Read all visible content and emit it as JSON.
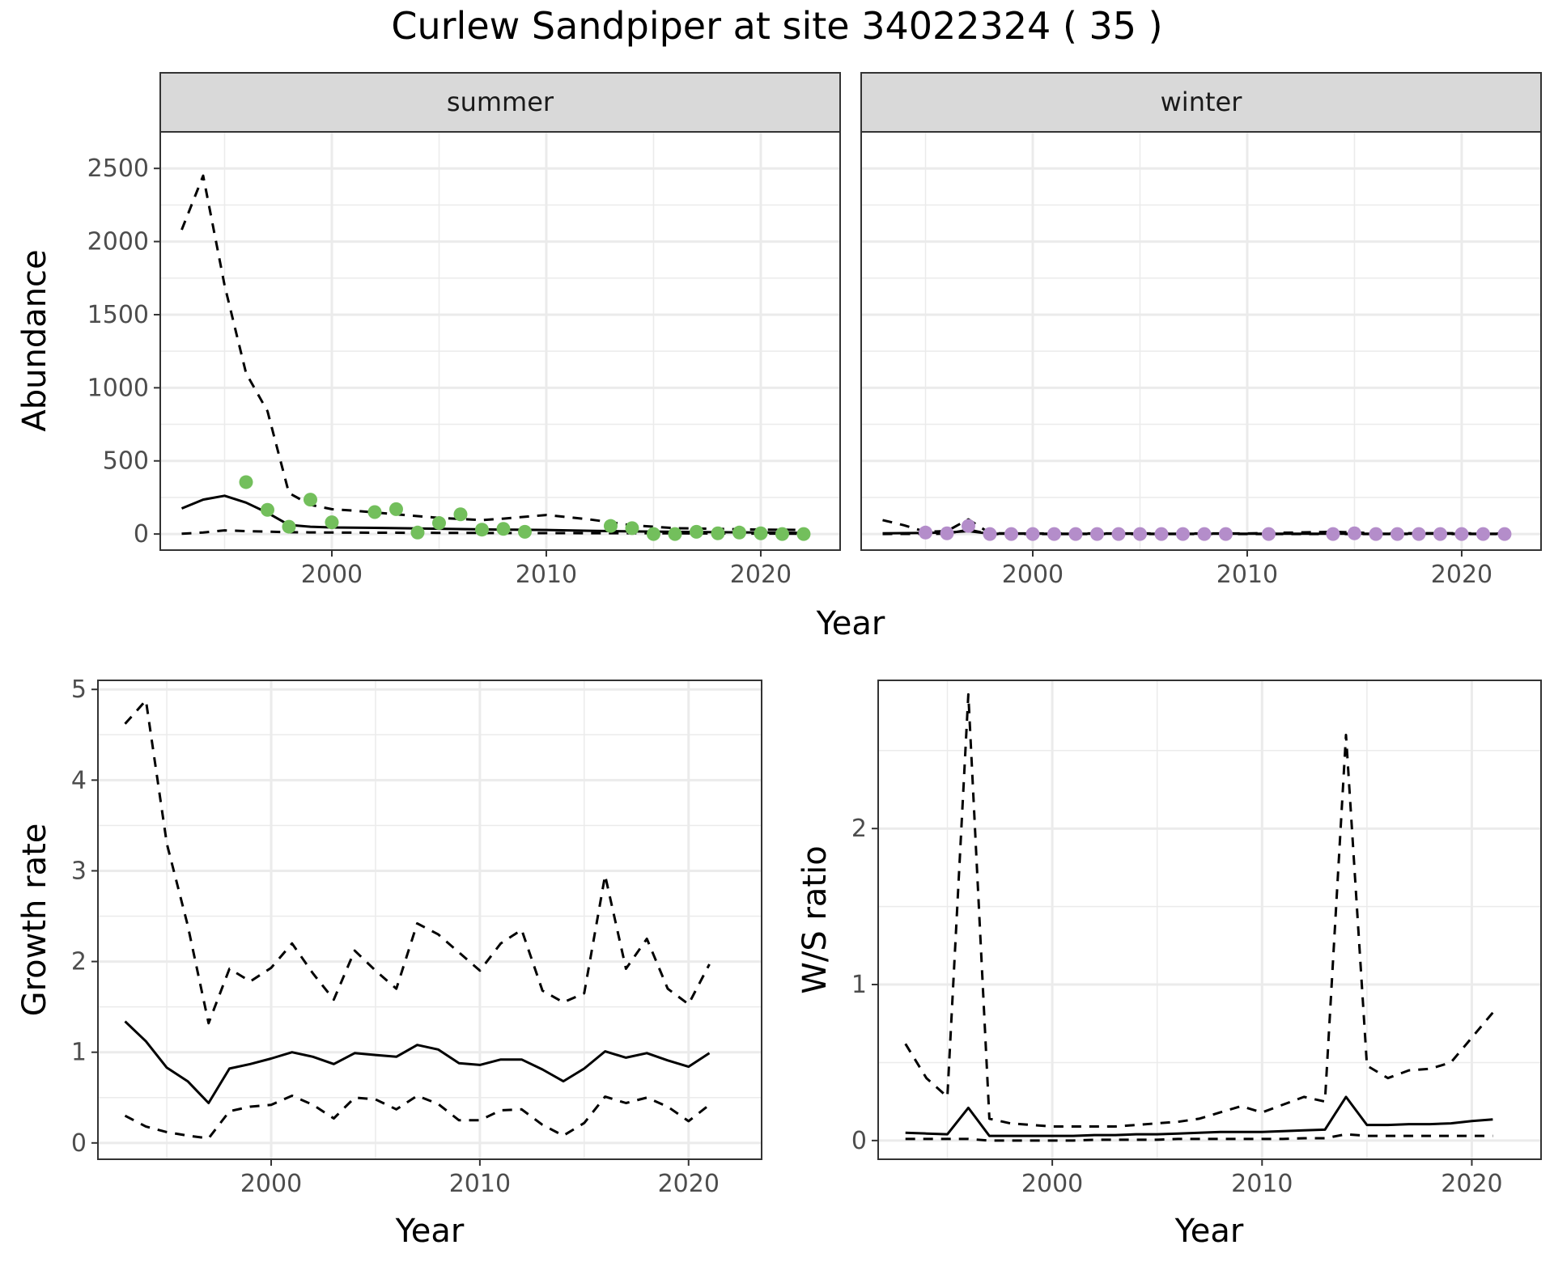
{
  "title": "Curlew Sandpiper at site 34022324 ( 35 )",
  "colors": {
    "summer_points": "#73bf5c",
    "winter_points": "#b48dca",
    "line": "#000000",
    "strip_bg": "#d9d9d9",
    "grid": "#ebebeb"
  },
  "chart_data": [
    {
      "type": "line",
      "panel": "abundance",
      "facets": [
        "summer",
        "winter"
      ],
      "xlabel": "Year",
      "ylabel": "Abundance",
      "xlim": [
        1992,
        2023.7
      ],
      "ylim": [
        -110,
        2750
      ],
      "xticks": [
        2000,
        2010,
        2020
      ],
      "yticks": [
        0,
        500,
        1000,
        1500,
        2000,
        2500
      ],
      "grid": true,
      "summer": {
        "mean": {
          "x": [
            1993,
            1994,
            1995,
            1996,
            1997,
            1998,
            1999,
            2000,
            2002,
            2004,
            2006,
            2008,
            2010,
            2012,
            2014,
            2016,
            2018,
            2020,
            2022
          ],
          "y": [
            175,
            235,
            262,
            215,
            145,
            62,
            50,
            45,
            42,
            38,
            34,
            30,
            28,
            22,
            18,
            15,
            12,
            10,
            8
          ]
        },
        "upper": {
          "x": [
            1993,
            1994,
            1995,
            1996,
            1997,
            1998,
            1999,
            2000,
            2001,
            2003,
            2005,
            2007,
            2008,
            2010,
            2012,
            2014,
            2016,
            2018,
            2020,
            2022
          ],
          "y": [
            2080,
            2450,
            1700,
            1100,
            840,
            280,
            200,
            170,
            160,
            135,
            110,
            95,
            105,
            130,
            100,
            60,
            40,
            35,
            30,
            28
          ]
        },
        "lower": {
          "x": [
            1993,
            1994,
            1995,
            1996,
            1998,
            2000,
            2005,
            2010,
            2015,
            2020,
            2022
          ],
          "y": [
            2,
            10,
            25,
            20,
            12,
            10,
            8,
            6,
            5,
            3,
            2
          ]
        },
        "points": {
          "x": [
            1996,
            1997,
            1998,
            1999,
            2000,
            2002,
            2003,
            2004,
            2005,
            2006,
            2007,
            2008,
            2009,
            2013,
            2014,
            2015,
            2016,
            2017,
            2018,
            2019,
            2020,
            2021,
            2022
          ],
          "y": [
            355,
            165,
            50,
            235,
            80,
            150,
            170,
            10,
            75,
            135,
            30,
            35,
            15,
            55,
            40,
            0,
            0,
            15,
            5,
            10,
            5,
            0,
            0
          ]
        }
      },
      "winter": {
        "mean": {
          "x": [
            1993,
            1995,
            1996,
            1997,
            1998,
            2000,
            2005,
            2010,
            2015,
            2020,
            2022
          ],
          "y": [
            5,
            8,
            10,
            20,
            2,
            2,
            2,
            2,
            2,
            2,
            2
          ]
        },
        "upper": {
          "x": [
            1993,
            1994,
            1995,
            1996,
            1997,
            1998,
            2000,
            2005,
            2010,
            2014,
            2016,
            2020,
            2022
          ],
          "y": [
            95,
            60,
            15,
            20,
            100,
            5,
            4,
            4,
            4,
            15,
            6,
            5,
            4
          ]
        },
        "lower": {
          "x": [
            1993,
            1996,
            1997,
            1998,
            2010,
            2022
          ],
          "y": [
            0,
            2,
            30,
            0,
            0,
            0
          ]
        },
        "points": {
          "x": [
            1995,
            1996,
            1997,
            1998,
            1999,
            2000,
            2001,
            2002,
            2003,
            2004,
            2005,
            2006,
            2007,
            2008,
            2009,
            2011,
            2014,
            2015,
            2016,
            2017,
            2018,
            2019,
            2020,
            2021,
            2022
          ],
          "y": [
            10,
            5,
            55,
            0,
            0,
            0,
            0,
            0,
            0,
            0,
            0,
            0,
            0,
            0,
            0,
            0,
            0,
            5,
            0,
            0,
            0,
            0,
            0,
            0,
            0
          ]
        }
      }
    },
    {
      "type": "line",
      "panel": "growth",
      "xlabel": "Year",
      "ylabel": "Growth rate",
      "xlim": [
        1991.7,
        2023.5
      ],
      "ylim": [
        -0.18,
        5.1
      ],
      "xticks": [
        2000,
        2010,
        2020
      ],
      "yticks": [
        0,
        1,
        2,
        3,
        4,
        5
      ],
      "grid": true,
      "x": [
        1993,
        1994,
        1995,
        1996,
        1997,
        1998,
        1999,
        2000,
        2001,
        2002,
        2003,
        2004,
        2005,
        2006,
        2007,
        2008,
        2009,
        2010,
        2011,
        2012,
        2013,
        2014,
        2015,
        2016,
        2017,
        2018,
        2019,
        2020,
        2021
      ],
      "mean": [
        1.34,
        1.12,
        0.83,
        0.68,
        0.44,
        0.82,
        0.87,
        0.93,
        1.0,
        0.95,
        0.87,
        0.99,
        0.97,
        0.95,
        1.08,
        1.03,
        0.88,
        0.86,
        0.92,
        0.92,
        0.81,
        0.68,
        0.82,
        1.01,
        0.94,
        0.99,
        0.91,
        0.84,
        0.99
      ],
      "upper": [
        4.62,
        4.88,
        3.3,
        2.4,
        1.32,
        1.92,
        1.78,
        1.93,
        2.2,
        1.87,
        1.58,
        2.12,
        1.9,
        1.7,
        2.42,
        2.3,
        2.1,
        1.9,
        2.2,
        2.35,
        1.68,
        1.55,
        1.65,
        2.95,
        1.92,
        2.25,
        1.7,
        1.53,
        1.97
      ],
      "lower": [
        0.3,
        0.18,
        0.12,
        0.08,
        0.05,
        0.35,
        0.4,
        0.42,
        0.52,
        0.42,
        0.27,
        0.5,
        0.48,
        0.37,
        0.52,
        0.43,
        0.25,
        0.25,
        0.36,
        0.37,
        0.2,
        0.08,
        0.22,
        0.51,
        0.44,
        0.5,
        0.4,
        0.24,
        0.42
      ]
    },
    {
      "type": "line",
      "panel": "ratio",
      "xlabel": "Year",
      "ylabel": "W/S ratio",
      "xlim": [
        1991.7,
        2023.3
      ],
      "ylim": [
        -0.12,
        2.95
      ],
      "xticks": [
        2000,
        2010,
        2020
      ],
      "yticks": [
        0,
        1,
        2
      ],
      "grid": true,
      "x": [
        1993,
        1994,
        1995,
        1996,
        1997,
        1998,
        1999,
        2000,
        2001,
        2002,
        2003,
        2004,
        2005,
        2006,
        2007,
        2008,
        2009,
        2010,
        2011,
        2012,
        2013,
        2014,
        2015,
        2016,
        2017,
        2018,
        2019,
        2020,
        2021
      ],
      "mean": [
        0.05,
        0.045,
        0.04,
        0.21,
        0.03,
        0.03,
        0.03,
        0.03,
        0.03,
        0.035,
        0.035,
        0.04,
        0.04,
        0.045,
        0.05,
        0.055,
        0.055,
        0.055,
        0.06,
        0.065,
        0.07,
        0.28,
        0.1,
        0.1,
        0.105,
        0.105,
        0.11,
        0.125,
        0.135
      ],
      "upper": [
        0.62,
        0.4,
        0.28,
        2.86,
        0.14,
        0.11,
        0.1,
        0.09,
        0.09,
        0.09,
        0.09,
        0.1,
        0.11,
        0.12,
        0.14,
        0.18,
        0.22,
        0.18,
        0.23,
        0.28,
        0.25,
        2.6,
        0.48,
        0.4,
        0.45,
        0.46,
        0.5,
        0.66,
        0.82
      ],
      "lower": [
        0.01,
        0.01,
        0.01,
        0.01,
        0.0,
        0.0,
        0.0,
        0.0,
        0.0,
        0.005,
        0.005,
        0.005,
        0.005,
        0.01,
        0.01,
        0.01,
        0.01,
        0.01,
        0.01,
        0.015,
        0.015,
        0.04,
        0.03,
        0.03,
        0.03,
        0.03,
        0.03,
        0.03,
        0.03
      ]
    }
  ]
}
